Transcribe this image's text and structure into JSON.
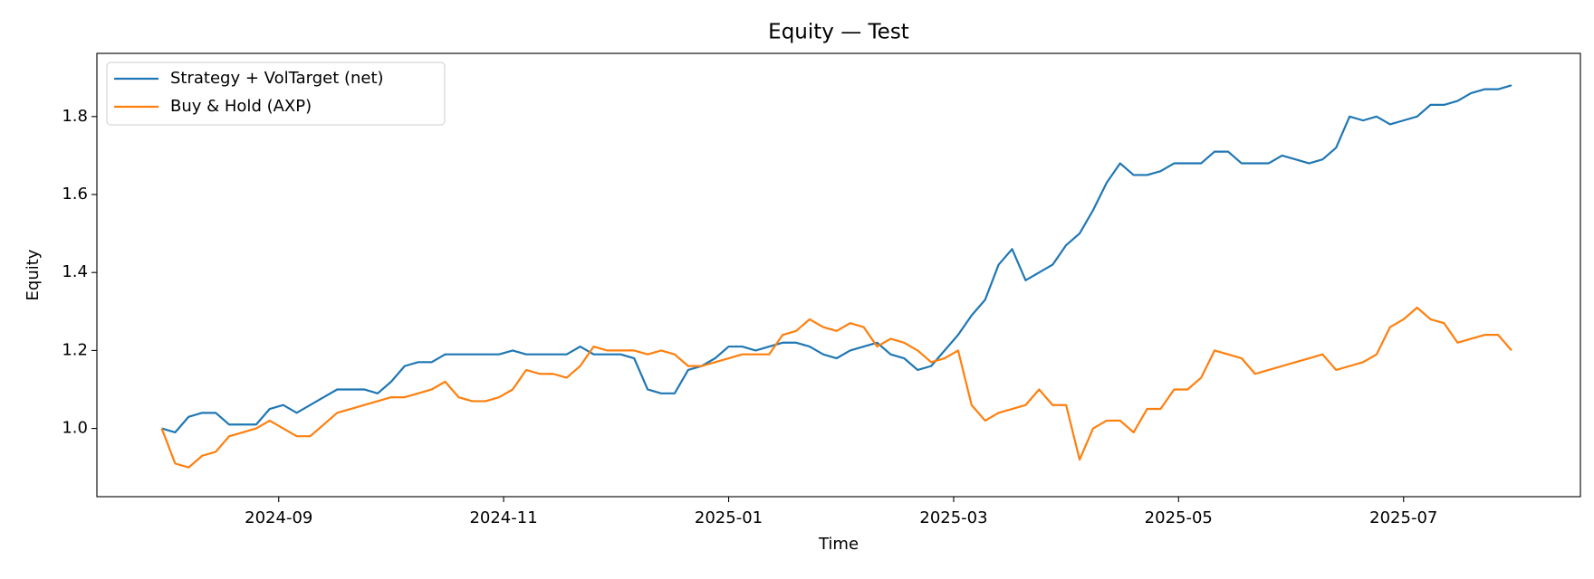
{
  "chart_data": {
    "type": "line",
    "title": "Equity — Test",
    "xlabel": "Time",
    "ylabel": "Equity",
    "x": [
      2024.58,
      2024.59,
      2024.6,
      2024.61,
      2024.62,
      2024.63,
      2024.64,
      2024.65,
      2024.66,
      2024.67,
      2024.68,
      2024.69,
      2024.7,
      2024.71,
      2024.72,
      2024.73,
      2024.74,
      2024.75,
      2024.76,
      2024.77,
      2024.78,
      2024.79,
      2024.8,
      2024.81,
      2024.82,
      2024.83,
      2024.84,
      2024.85,
      2024.86,
      2024.87,
      2024.88,
      2024.89,
      2024.9,
      2024.91,
      2024.92,
      2024.93,
      2024.94,
      2024.95,
      2024.96,
      2024.97,
      2024.98,
      2024.99,
      2025.0,
      2025.01,
      2025.02,
      2025.03,
      2025.04,
      2025.05,
      2025.06,
      2025.07,
      2025.08,
      2025.09,
      2025.1,
      2025.11,
      2025.12,
      2025.13,
      2025.14,
      2025.15,
      2025.16,
      2025.17,
      2025.18,
      2025.19,
      2025.2,
      2025.21,
      2025.22,
      2025.23,
      2025.24,
      2025.25,
      2025.26,
      2025.27,
      2025.28,
      2025.29,
      2025.3,
      2025.31,
      2025.32,
      2025.33,
      2025.34,
      2025.35,
      2025.36,
      2025.37,
      2025.38,
      2025.39,
      2025.4,
      2025.41,
      2025.42,
      2025.43,
      2025.44,
      2025.45,
      2025.46,
      2025.47,
      2025.48,
      2025.49,
      2025.5,
      2025.51,
      2025.52,
      2025.53,
      2025.54,
      2025.55,
      2025.56,
      2025.57,
      2025.58
    ],
    "series": [
      {
        "name": "Strategy + VolTarget (net)",
        "color": "#1f77b4",
        "values": [
          1.0,
          0.99,
          1.03,
          1.04,
          1.04,
          1.01,
          1.01,
          1.01,
          1.05,
          1.06,
          1.04,
          1.06,
          1.08,
          1.1,
          1.1,
          1.1,
          1.09,
          1.12,
          1.16,
          1.17,
          1.17,
          1.19,
          1.19,
          1.19,
          1.19,
          1.19,
          1.2,
          1.19,
          1.19,
          1.19,
          1.19,
          1.21,
          1.19,
          1.19,
          1.19,
          1.18,
          1.1,
          1.09,
          1.09,
          1.15,
          1.16,
          1.18,
          1.21,
          1.21,
          1.2,
          1.21,
          1.22,
          1.22,
          1.21,
          1.19,
          1.18,
          1.2,
          1.21,
          1.22,
          1.19,
          1.18,
          1.15,
          1.16,
          1.2,
          1.24,
          1.29,
          1.33,
          1.42,
          1.46,
          1.38,
          1.4,
          1.42,
          1.47,
          1.5,
          1.56,
          1.63,
          1.68,
          1.65,
          1.65,
          1.66,
          1.68,
          1.68,
          1.68,
          1.71,
          1.71,
          1.68,
          1.68,
          1.68,
          1.7,
          1.69,
          1.68,
          1.69,
          1.72,
          1.8,
          1.79,
          1.8,
          1.78,
          1.79,
          1.8,
          1.83,
          1.83,
          1.84,
          1.86,
          1.87,
          1.87,
          1.88
        ]
      },
      {
        "name": "Buy & Hold (AXP)",
        "color": "#ff7f0e",
        "values": [
          1.0,
          0.91,
          0.9,
          0.93,
          0.94,
          0.98,
          0.99,
          1.0,
          1.02,
          1.0,
          0.98,
          0.98,
          1.01,
          1.04,
          1.05,
          1.06,
          1.07,
          1.08,
          1.08,
          1.09,
          1.1,
          1.12,
          1.08,
          1.07,
          1.07,
          1.08,
          1.1,
          1.15,
          1.14,
          1.14,
          1.13,
          1.16,
          1.21,
          1.2,
          1.2,
          1.2,
          1.19,
          1.2,
          1.19,
          1.16,
          1.16,
          1.17,
          1.18,
          1.19,
          1.19,
          1.19,
          1.24,
          1.25,
          1.28,
          1.26,
          1.25,
          1.27,
          1.26,
          1.21,
          1.23,
          1.22,
          1.2,
          1.17,
          1.18,
          1.2,
          1.06,
          1.02,
          1.04,
          1.05,
          1.06,
          1.1,
          1.06,
          1.06,
          0.92,
          1.0,
          1.02,
          1.02,
          0.99,
          1.05,
          1.05,
          1.1,
          1.1,
          1.13,
          1.2,
          1.19,
          1.18,
          1.14,
          1.15,
          1.16,
          1.17,
          1.18,
          1.19,
          1.15,
          1.16,
          1.17,
          1.19,
          1.26,
          1.28,
          1.31,
          1.28,
          1.27,
          1.22,
          1.23,
          1.24,
          1.24,
          1.2
        ]
      }
    ],
    "xlim": [
      2024.532,
      2025.631
    ],
    "xticks": [
      {
        "value": 2024.6667,
        "label": "2024-09"
      },
      {
        "value": 2024.8333,
        "label": "2024-11"
      },
      {
        "value": 2025.0,
        "label": "2025-01"
      },
      {
        "value": 2025.1667,
        "label": "2025-03"
      },
      {
        "value": 2025.3333,
        "label": "2025-05"
      },
      {
        "value": 2025.5,
        "label": "2025-07"
      }
    ],
    "ylim": [
      0.825,
      1.962
    ],
    "yticks": [
      {
        "value": 1,
        "label": "1.0"
      },
      1.2,
      1.4,
      1.6,
      1.8
    ],
    "legend": "upper left",
    "grid": false
  }
}
